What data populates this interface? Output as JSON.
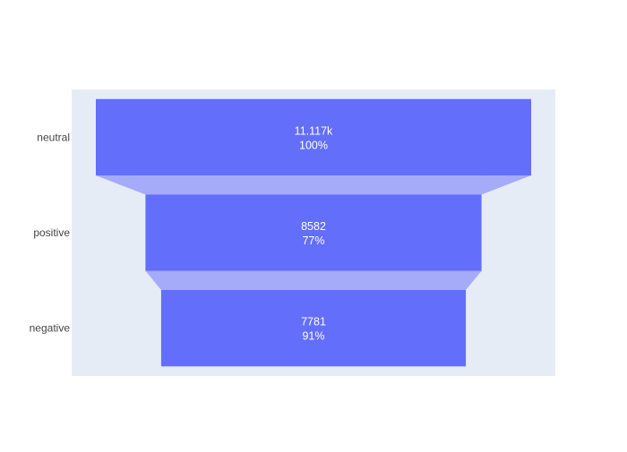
{
  "chart_data": {
    "type": "funnel",
    "categories": [
      "neutral",
      "positive",
      "negative"
    ],
    "values": [
      11117,
      8582,
      7781
    ],
    "value_labels": [
      "11.117k",
      "8582",
      "7781"
    ],
    "percent_labels": [
      "100%",
      "77%",
      "91%"
    ],
    "percent_basis": "percent of previous",
    "colors": {
      "bar": "#636efa",
      "connector": "#a5abf9",
      "plot_background": "#e5ecf6",
      "label_text": "#ffffff",
      "axis_text": "#444444"
    },
    "grid": false,
    "legend": "none"
  }
}
